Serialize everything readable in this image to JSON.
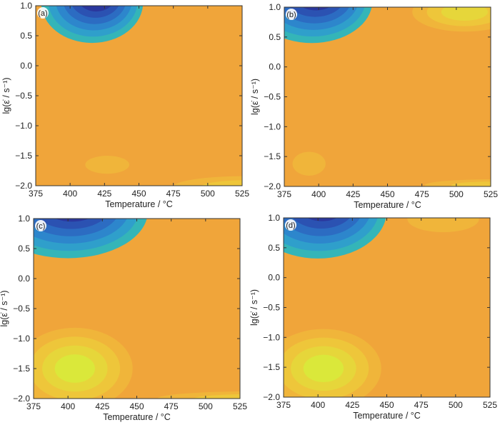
{
  "figure": {
    "panel_labels": [
      "(a)",
      "(b)",
      "(c)",
      "(d)"
    ]
  },
  "colors": {
    "background_level": "#f0a53a",
    "high_levels": [
      "#f0b53a",
      "#eec63a",
      "#e6d63a",
      "#dae83a"
    ],
    "low_levels": [
      "#34b5b8",
      "#2f9fcb",
      "#2d86cc",
      "#2c6cc2",
      "#2b52b2",
      "#2a379d",
      "#22247e"
    ]
  },
  "chart_data": [
    {
      "type": "heatmap",
      "panel": "(a)",
      "xlabel": "Temperature / °C",
      "ylabel": "lg(ε̇ / s⁻¹)",
      "xlim": [
        375,
        525
      ],
      "ylim": [
        -2.0,
        1.0
      ],
      "xticks": [
        "375",
        "400",
        "425",
        "450",
        "475",
        "500",
        "525"
      ],
      "yticks": [
        "−2.0",
        "−1.5",
        "−1.0",
        "−0.5",
        "0.0",
        "0.5",
        "1.0"
      ],
      "background_level": 0,
      "regions": [
        {
          "kind": "low",
          "x_range": [
            385,
            453
          ],
          "y_range": [
            0.4,
            1.0
          ],
          "min_at": [
            415,
            1.0
          ],
          "levels": 7
        },
        {
          "kind": "high",
          "center": [
            427,
            -1.65
          ],
          "levels": 1
        },
        {
          "kind": "high",
          "center": [
            520,
            -2.0
          ],
          "levels": 2
        }
      ]
    },
    {
      "type": "heatmap",
      "panel": "(b)",
      "xlabel": "Temperature / °C",
      "ylabel": "lg(ε̇ / s⁻¹)",
      "xlim": [
        375,
        525
      ],
      "ylim": [
        -2.0,
        1.0
      ],
      "xticks": [
        "375",
        "400",
        "425",
        "450",
        "475",
        "500",
        "525"
      ],
      "yticks": [
        "−2.0",
        "−1.5",
        "−1.0",
        "−0.5",
        "0.0",
        "0.5",
        "1.0"
      ],
      "background_level": 0,
      "regions": [
        {
          "kind": "low",
          "x_range": [
            375,
            436
          ],
          "y_range": [
            0.42,
            1.0
          ],
          "min_at": [
            400,
            1.0
          ],
          "levels": 7
        },
        {
          "kind": "high",
          "center": [
            505,
            0.9
          ],
          "levels": 3
        },
        {
          "kind": "high",
          "center": [
            393,
            -1.62
          ],
          "levels": 1
        },
        {
          "kind": "high",
          "center": [
            520,
            -1.95
          ],
          "levels": 2
        }
      ]
    },
    {
      "type": "heatmap",
      "panel": "(c)",
      "xlabel": "Temperature / °C",
      "ylabel": "lg(ε̇ / s⁻¹)",
      "xlim": [
        375,
        525
      ],
      "ylim": [
        -2.0,
        1.0
      ],
      "xticks": [
        "375",
        "400",
        "425",
        "450",
        "475",
        "500",
        "525"
      ],
      "yticks": [
        "−2.0",
        "−1.5",
        "−1.0",
        "−0.5",
        "0.0",
        "0.5",
        "1.0"
      ],
      "background_level": 0,
      "regions": [
        {
          "kind": "low",
          "x_range": [
            375,
            454
          ],
          "y_range": [
            0.35,
            1.0
          ],
          "min_at": [
            408,
            1.0
          ],
          "levels": 7
        },
        {
          "kind": "high",
          "center": [
            407,
            -1.55
          ],
          "levels": 4
        },
        {
          "kind": "high",
          "center": [
            510,
            -1.95
          ],
          "levels": 2
        }
      ]
    },
    {
      "type": "heatmap",
      "panel": "(d)",
      "xlabel": "Temperature / °C",
      "ylabel": "lg(ε̇ / s⁻¹)",
      "xlim": [
        375,
        525
      ],
      "ylim": [
        -2.0,
        1.0
      ],
      "xticks": [
        "375",
        "400",
        "425",
        "450",
        "475",
        "500",
        "525"
      ],
      "yticks": [
        "−2.0",
        "−1.5",
        "−1.0",
        "−0.5",
        "0.0",
        "0.5",
        "1.0"
      ],
      "background_level": 0,
      "regions": [
        {
          "kind": "low",
          "x_range": [
            375,
            448
          ],
          "y_range": [
            0.32,
            1.0
          ],
          "min_at": [
            405,
            1.0
          ],
          "levels": 7
        },
        {
          "kind": "high",
          "center": [
            492,
            0.95
          ],
          "levels": 1
        },
        {
          "kind": "high",
          "center": [
            405,
            -1.6
          ],
          "levels": 4
        }
      ]
    }
  ]
}
